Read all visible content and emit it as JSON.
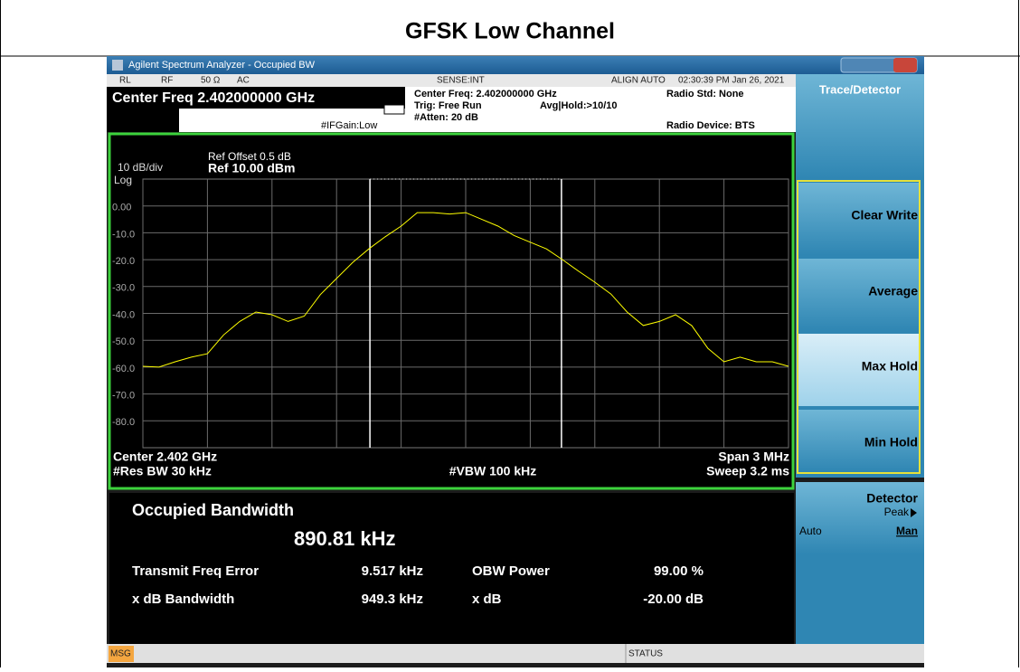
{
  "header": {
    "title": "GFSK Low Channel"
  },
  "window": {
    "title": "Agilent Spectrum Analyzer - Occupied BW"
  },
  "status_row": [
    "RL",
    "RF",
    "50 Ω",
    "AC",
    "SENSE:INT",
    "ALIGN AUTO",
    "02:30:39 PM Jan 26, 2021"
  ],
  "settings": {
    "center_freq": "Center Freq 2.402000000 GHz",
    "if_gain": "#IFGain:Low",
    "center_freq_info": "Center Freq: 2.402000000 GHz",
    "trig": "Trig: Free Run",
    "avg_hold": "Avg|Hold:>10/10",
    "atten": "#Atten: 20 dB",
    "radio_std": "Radio Std: None",
    "radio_device": "Radio Device: BTS"
  },
  "menu": {
    "title": "Trace/Detector",
    "buttons": [
      "Clear Write",
      "Average",
      "Max Hold",
      "Min Hold"
    ],
    "detector": {
      "label": "Detector",
      "value": "Peak",
      "auto": "Auto",
      "man": "Man"
    }
  },
  "chart_data": {
    "type": "line",
    "ref_offset": "Ref Offset 0.5 dB",
    "ref_level": "Ref 10.00 dBm",
    "scale": "10 dB/div",
    "scale_type": "Log",
    "footer": {
      "center": "Center 2.402 GHz",
      "span": "Span 3 MHz",
      "rbw": "#Res BW 30 kHz",
      "vbw": "#VBW 100 kHz",
      "sweep": "Sweep 3.2 ms"
    },
    "x": [
      -1.5,
      -1.425,
      -1.35,
      -1.275,
      -1.2,
      -1.125,
      -1.05,
      -0.975,
      -0.9,
      -0.825,
      -0.75,
      -0.675,
      -0.6,
      -0.525,
      -0.45,
      -0.375,
      -0.3,
      -0.225,
      -0.15,
      -0.075,
      0,
      0.075,
      0.15,
      0.225,
      0.3,
      0.375,
      0.45,
      0.525,
      0.6,
      0.675,
      0.75,
      0.825,
      0.9,
      0.975,
      1.05,
      1.125,
      1.2,
      1.275,
      1.35,
      1.425,
      1.5
    ],
    "values": [
      -59.7,
      -60,
      -58,
      -56.3,
      -55,
      -48,
      -43,
      -39.5,
      -40.5,
      -43,
      -41,
      -33,
      -27,
      -21,
      -16,
      -11.5,
      -7.5,
      -2.5,
      -2.5,
      -3,
      -2.5,
      -5,
      -7.5,
      -11,
      -13.5,
      -16,
      -20,
      -24.3,
      -28.4,
      -32.8,
      -39.5,
      -44.5,
      -43,
      -40.5,
      -44.5,
      -53,
      -58,
      -56.3,
      -58,
      -58,
      -59.7
    ],
    "color": "#ffff00",
    "grid": true,
    "xlim": [
      -1.5,
      1.5
    ],
    "ylim": [
      -90,
      10
    ],
    "xticks": [
      -1.5,
      -1.2,
      -0.9,
      -0.6,
      -0.3,
      0,
      0.3,
      0.6,
      0.9,
      1.2,
      1.5
    ],
    "yticks": [
      {
        "value": 0,
        "label": "0.00"
      },
      {
        "value": -10,
        "label": "-10.0"
      },
      {
        "value": -20,
        "label": "-20.0"
      },
      {
        "value": -30,
        "label": "-30.0"
      },
      {
        "value": -40,
        "label": "-40.0"
      },
      {
        "value": -50,
        "label": "-50.0"
      },
      {
        "value": -60,
        "label": "-60.0"
      },
      {
        "value": -70,
        "label": "-70.0"
      },
      {
        "value": -80,
        "label": "-80.0"
      }
    ],
    "obw_lines": [
      -0.445,
      0.445
    ]
  },
  "measurement": {
    "title": "Occupied Bandwidth",
    "obw": "890.81 kHz",
    "rows": [
      [
        "Transmit Freq Error",
        "9.517 kHz",
        "OBW Power",
        "99.00 %"
      ],
      [
        "x dB Bandwidth",
        "949.3 kHz",
        "x dB",
        "-20.00 dB"
      ]
    ]
  },
  "status_bar": {
    "msg": "MSG",
    "status": "STATUS"
  }
}
